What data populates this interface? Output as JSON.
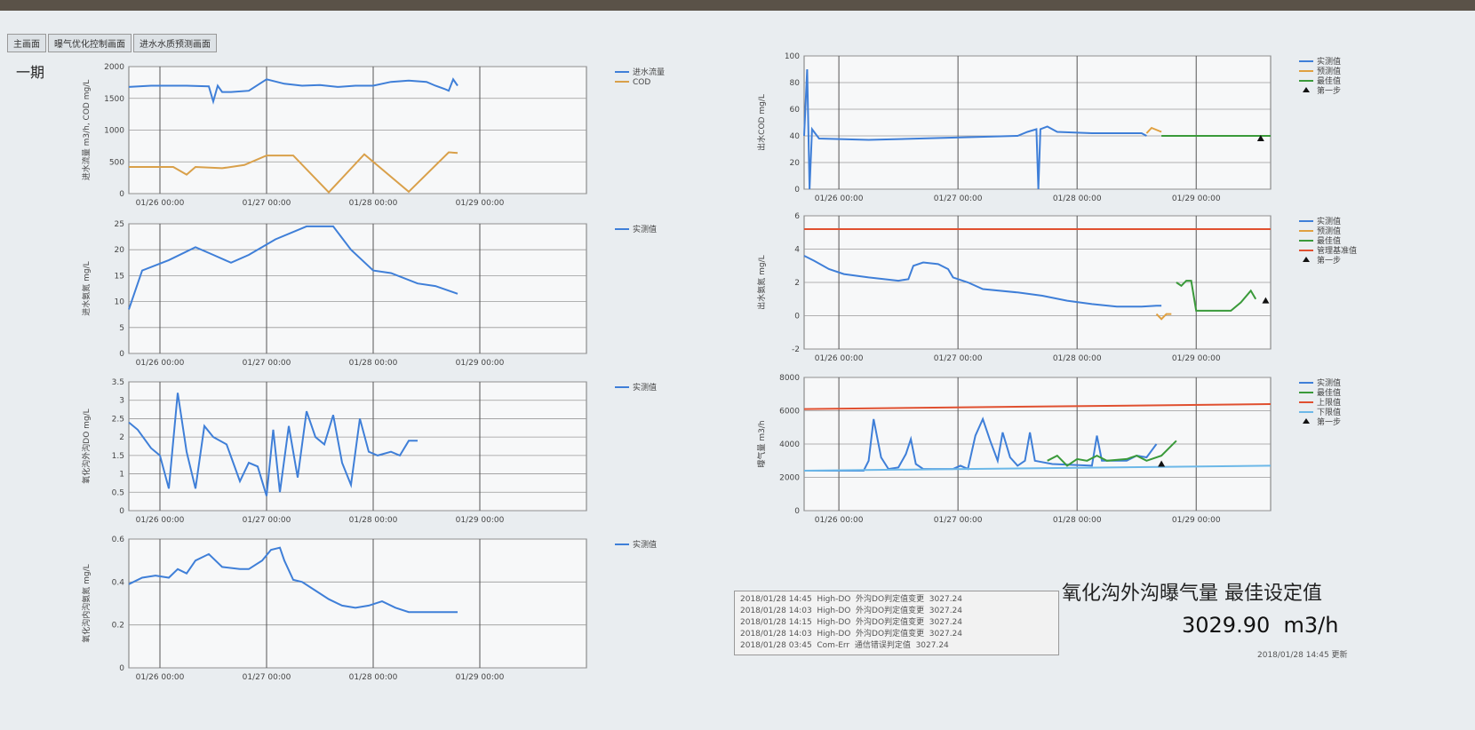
{
  "tabs": [
    "主画面",
    "曝气优化控制画面",
    "进水水质预测画面"
  ],
  "header": {
    "section": "一期"
  },
  "chart_data": [
    {
      "type": "line",
      "ylabel": "进水流量 m3/h, COD mg/L",
      "grid": true,
      "xlim": [
        17,
        120
      ],
      "ylim": [
        0,
        2000
      ],
      "yticks": [
        0,
        500,
        1000,
        1500,
        2000
      ],
      "xticks": [
        {
          "value": 24,
          "label": "01/26 00:00"
        },
        {
          "value": 48,
          "label": "01/27 00:00"
        },
        {
          "value": 72,
          "label": "01/28 00:00"
        },
        {
          "value": 96,
          "label": "01/29 00:00"
        }
      ],
      "series": [
        {
          "name": "进水流量",
          "color": "#3f7fd8",
          "x": [
            17,
            22,
            30,
            35,
            36,
            37,
            38,
            40,
            44,
            48,
            52,
            56,
            60,
            64,
            68,
            72,
            76,
            80,
            84,
            86,
            88,
            89,
            90,
            91
          ],
          "values": [
            1680,
            1700,
            1700,
            1690,
            1450,
            1700,
            1600,
            1600,
            1620,
            1800,
            1730,
            1700,
            1710,
            1680,
            1700,
            1700,
            1760,
            1780,
            1760,
            1700,
            1650,
            1620,
            1800,
            1700
          ]
        },
        {
          "name": "COD",
          "color": "#d9a04a",
          "x": [
            17,
            27,
            30,
            32,
            38,
            43,
            48,
            54,
            62,
            70,
            80,
            89,
            91
          ],
          "values": [
            420,
            420,
            300,
            420,
            400,
            450,
            600,
            600,
            20,
            620,
            30,
            650,
            640
          ]
        }
      ]
    },
    {
      "type": "line",
      "ylabel": "进水氨氮 mg/L",
      "grid": true,
      "xlim": [
        17,
        120
      ],
      "ylim": [
        0,
        25
      ],
      "yticks": [
        0,
        5,
        10,
        15,
        20,
        25
      ],
      "xticks": [
        {
          "value": 24,
          "label": "01/26 00:00"
        },
        {
          "value": 48,
          "label": "01/27 00:00"
        },
        {
          "value": 72,
          "label": "01/28 00:00"
        },
        {
          "value": 96,
          "label": "01/29 00:00"
        }
      ],
      "series": [
        {
          "name": "实测值",
          "color": "#3f7fd8",
          "x": [
            17,
            20,
            26,
            32,
            36,
            40,
            44,
            50,
            57,
            63,
            67,
            72,
            76,
            82,
            86,
            91
          ],
          "values": [
            8.5,
            16,
            18,
            20.5,
            19,
            17.5,
            19,
            22,
            24.5,
            24.5,
            20,
            16,
            15.5,
            13.5,
            13,
            11.5
          ]
        }
      ]
    },
    {
      "type": "line",
      "ylabel": "氧化沟外沟DO mg/L",
      "grid": true,
      "xlim": [
        17,
        120
      ],
      "ylim": [
        0,
        3.5
      ],
      "yticks": [
        0,
        0.5,
        1,
        1.5,
        2,
        2.5,
        3,
        3.5
      ],
      "xticks": [
        {
          "value": 24,
          "label": "01/26 00:00"
        },
        {
          "value": 48,
          "label": "01/27 00:00"
        },
        {
          "value": 72,
          "label": "01/28 00:00"
        },
        {
          "value": 96,
          "label": "01/29 00:00"
        }
      ],
      "series": [
        {
          "name": "实测值",
          "color": "#3f7fd8",
          "x": [
            17,
            19,
            22,
            24,
            26,
            28,
            30,
            32,
            34,
            36,
            39,
            42,
            44,
            46,
            48,
            49.5,
            51,
            53,
            55,
            57,
            59,
            61,
            63,
            65,
            67,
            69,
            71,
            73,
            76,
            78,
            80,
            82
          ],
          "values": [
            2.4,
            2.2,
            1.7,
            1.5,
            0.6,
            3.2,
            1.6,
            0.6,
            2.3,
            2.0,
            1.8,
            0.8,
            1.3,
            1.2,
            0.4,
            2.2,
            0.5,
            2.3,
            0.9,
            2.7,
            2.0,
            1.8,
            2.6,
            1.3,
            0.7,
            2.5,
            1.6,
            1.5,
            1.6,
            1.5,
            1.9,
            1.9
          ]
        }
      ]
    },
    {
      "type": "line",
      "ylabel": "氧化沟内沟氨氮 mg/L",
      "grid": true,
      "xlim": [
        17,
        120
      ],
      "ylim": [
        0,
        0.6
      ],
      "yticks": [
        0,
        0.2,
        0.4,
        0.6
      ],
      "xticks": [
        {
          "value": 24,
          "label": "01/26 00:00"
        },
        {
          "value": 48,
          "label": "01/27 00:00"
        },
        {
          "value": 72,
          "label": "01/28 00:00"
        },
        {
          "value": 96,
          "label": "01/29 00:00"
        }
      ],
      "series": [
        {
          "name": "实测值",
          "color": "#3f7fd8",
          "x": [
            17,
            20,
            23,
            26,
            28,
            30,
            32,
            35,
            38,
            42,
            44,
            47,
            49,
            51,
            52,
            54,
            56,
            59,
            62,
            65,
            68,
            71,
            74,
            77,
            80,
            84,
            88,
            91
          ],
          "values": [
            0.39,
            0.42,
            0.43,
            0.42,
            0.46,
            0.44,
            0.5,
            0.53,
            0.47,
            0.46,
            0.46,
            0.5,
            0.55,
            0.56,
            0.5,
            0.41,
            0.4,
            0.36,
            0.32,
            0.29,
            0.28,
            0.29,
            0.31,
            0.28,
            0.26,
            0.26,
            0.26,
            0.26
          ]
        }
      ]
    },
    {
      "type": "line",
      "ylabel": "出水COD mg/L",
      "grid": true,
      "xlim": [
        17,
        111
      ],
      "ylim": [
        0,
        100
      ],
      "yticks": [
        0,
        20,
        40,
        60,
        80,
        100
      ],
      "xticks": [
        {
          "value": 24,
          "label": "01/26 00:00"
        },
        {
          "value": 48,
          "label": "01/27 00:00"
        },
        {
          "value": 72,
          "label": "01/28 00:00"
        },
        {
          "value": 96,
          "label": "01/29 00:00"
        }
      ],
      "series": [
        {
          "name": "实测值",
          "color": "#3f7fd8",
          "x": [
            17,
            17.6,
            18.1,
            18.6,
            20,
            30,
            50,
            60,
            62,
            63.8,
            64.2,
            64.6,
            66,
            68,
            75,
            85,
            86
          ],
          "values": [
            40,
            90,
            0,
            45,
            38,
            37,
            39,
            40,
            43,
            45,
            0,
            45,
            47,
            43,
            42,
            42,
            40
          ]
        },
        {
          "name": "预测值",
          "color": "#e0a040",
          "x": [
            86,
            87,
            89
          ],
          "values": [
            42,
            46,
            43
          ]
        },
        {
          "name": "最佳值",
          "color": "#3a9a3a",
          "x": [
            89,
            96,
            100,
            111
          ],
          "values": [
            40,
            40,
            40,
            40
          ]
        },
        {
          "name": "第一步",
          "color": "#111111",
          "marker": "triangle",
          "x": [
            109
          ],
          "values": [
            38
          ]
        }
      ]
    },
    {
      "type": "line",
      "ylabel": "出水氨氮 mg/L",
      "grid": true,
      "xlim": [
        17,
        111
      ],
      "ylim": [
        -2,
        6
      ],
      "yticks": [
        -2,
        0,
        2,
        4,
        6
      ],
      "xticks": [
        {
          "value": 24,
          "label": "01/26 00:00"
        },
        {
          "value": 48,
          "label": "01/27 00:00"
        },
        {
          "value": 72,
          "label": "01/28 00:00"
        },
        {
          "value": 96,
          "label": "01/29 00:00"
        }
      ],
      "series": [
        {
          "name": "实测值",
          "color": "#3f7fd8",
          "x": [
            17,
            19,
            22,
            25,
            30,
            36,
            38,
            39,
            41,
            44,
            46,
            47,
            50,
            53,
            60,
            65,
            70,
            75,
            80,
            85,
            88,
            89
          ],
          "values": [
            3.6,
            3.3,
            2.8,
            2.5,
            2.3,
            2.1,
            2.2,
            3.0,
            3.2,
            3.1,
            2.8,
            2.3,
            2.0,
            1.6,
            1.4,
            1.2,
            0.9,
            0.7,
            0.55,
            0.55,
            0.6,
            0.6
          ]
        },
        {
          "name": "预测值",
          "color": "#e0a040",
          "x": [
            88,
            89,
            90,
            91
          ],
          "values": [
            0.1,
            -0.2,
            0.1,
            0.1
          ]
        },
        {
          "name": "最佳值",
          "color": "#3a9a3a",
          "x": [
            92,
            93,
            94,
            95,
            96,
            103,
            105,
            107,
            108
          ],
          "values": [
            2.0,
            1.8,
            2.1,
            2.1,
            0.3,
            0.3,
            0.8,
            1.5,
            1.0
          ]
        },
        {
          "name": "管理基准值",
          "color": "#e05030",
          "x": [
            17,
            111
          ],
          "values": [
            5.2,
            5.2
          ]
        },
        {
          "name": "第一步",
          "color": "#111111",
          "marker": "triangle",
          "x": [
            110
          ],
          "values": [
            0.9
          ]
        }
      ]
    },
    {
      "type": "line",
      "ylabel": "曝气量 m3/h",
      "grid": true,
      "xlim": [
        17,
        111
      ],
      "ylim": [
        0,
        8000
      ],
      "yticks": [
        0,
        2000,
        4000,
        6000,
        8000
      ],
      "xticks": [
        {
          "value": 24,
          "label": "01/26 00:00"
        },
        {
          "value": 48,
          "label": "01/27 00:00"
        },
        {
          "value": 72,
          "label": "01/28 00:00"
        },
        {
          "value": 96,
          "label": "01/29 00:00"
        }
      ],
      "series": [
        {
          "name": "实测值",
          "color": "#3f7fd8",
          "x": [
            17,
            29,
            30,
            31,
            32.5,
            34,
            36,
            37.5,
            38.5,
            39.5,
            41,
            47,
            48.5,
            50,
            51.5,
            53,
            54.5,
            56,
            57,
            58.5,
            60,
            61.5,
            62.5,
            63.5,
            67,
            75,
            76,
            77,
            82,
            84,
            86,
            88
          ],
          "values": [
            2400,
            2400,
            3000,
            5500,
            3200,
            2500,
            2600,
            3400,
            4300,
            2800,
            2500,
            2500,
            2700,
            2500,
            4500,
            5500,
            4200,
            3000,
            4700,
            3200,
            2700,
            3000,
            4700,
            3000,
            2800,
            2700,
            4500,
            3000,
            3000,
            3300,
            3200,
            4000
          ]
        },
        {
          "name": "最佳值",
          "color": "#3a9a3a",
          "x": [
            66,
            68,
            70,
            72,
            74,
            76,
            78,
            82,
            84,
            86,
            89,
            92
          ],
          "values": [
            3000,
            3300,
            2700,
            3100,
            3000,
            3300,
            3000,
            3100,
            3300,
            3000,
            3300,
            4200
          ]
        },
        {
          "name": "上限值",
          "color": "#e05030",
          "x": [
            17,
            111
          ],
          "values": [
            6100,
            6400
          ]
        },
        {
          "name": "下限值",
          "color": "#6cb8e8",
          "x": [
            17,
            111
          ],
          "values": [
            2400,
            2700
          ]
        },
        {
          "name": "第一步",
          "color": "#111111",
          "marker": "triangle",
          "x": [
            89
          ],
          "values": [
            2800
          ]
        }
      ]
    }
  ],
  "log": {
    "lines": [
      "2018/01/28 14:45  High-DO  外沟DO判定值变更  3027.24",
      "2018/01/28 14:03  High-DO  外沟DO判定值变更  3027.24",
      "2018/01/28 14:15  High-DO  外沟DO判定值变更  3027.24",
      "2018/01/28 14:03  High-DO  外沟DO判定值变更  3027.24",
      "2018/01/28 03:45  Com-Err  通信错误判定值  3027.24"
    ]
  },
  "setpoint": {
    "title": "氧化沟外沟曝气量 最佳设定值",
    "value": "3029.90",
    "unit": "m3/h"
  },
  "footer": "2018/01/28 14:45 更新"
}
